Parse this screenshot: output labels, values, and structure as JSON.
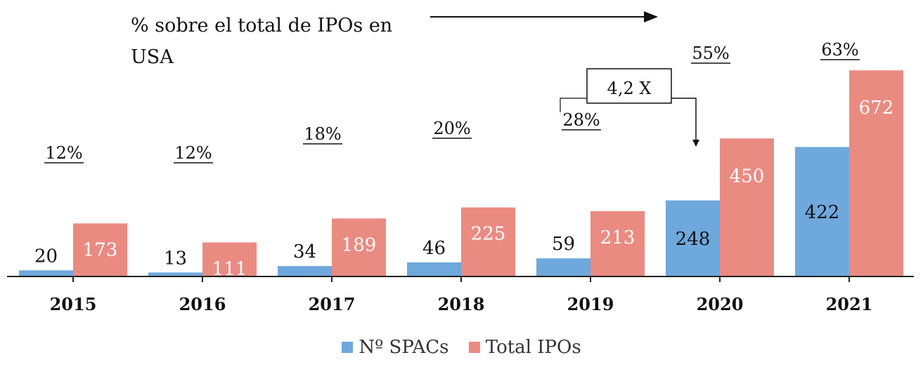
{
  "chart_data": {
    "type": "bar",
    "categories": [
      "2015",
      "2016",
      "2017",
      "2018",
      "2019",
      "2020",
      "2021"
    ],
    "series": [
      {
        "name": "Nº SPACs",
        "values": [
          20,
          13,
          34,
          46,
          59,
          248,
          422
        ],
        "color": "#6fa8dc"
      },
      {
        "name": "Total IPOs",
        "values": [
          173,
          111,
          189,
          225,
          213,
          450,
          672
        ],
        "color": "#ea8b82"
      }
    ],
    "percent_labels": [
      "12%",
      "12%",
      "18%",
      "20%",
      "28%",
      "55%",
      "63%"
    ],
    "annotation_title": "% sobre el total de IPOs en USA",
    "multiplier_label": "4,2 X",
    "ylim": [
      0,
      700
    ],
    "grid": false,
    "legend_position": "bottom"
  }
}
